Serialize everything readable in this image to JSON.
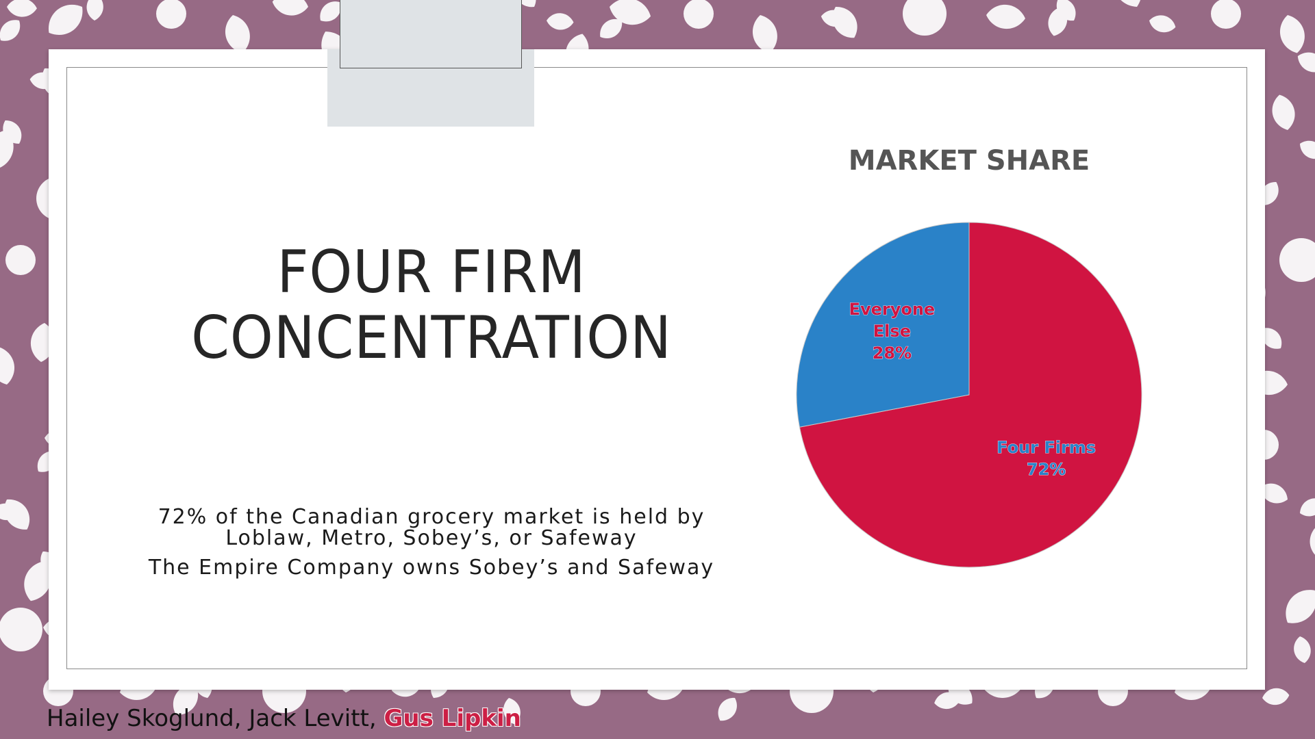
{
  "slide": {
    "title_line1": "FOUR FIRM",
    "title_line2": "CONCENTRATION",
    "body_line1": "72% of the Canadian grocery market is held by Loblaw, Metro, Sobey’s, or Safeway",
    "body_line2": "The Empire Company owns Sobey’s and Safeway",
    "authors_plain": "Hailey Skoglund, Jack Levitt, ",
    "authors_highlight": "Gus Lipkin"
  },
  "colors": {
    "background": "#976a85",
    "four_firms": "#d01441",
    "everyone_else": "#2a82c8",
    "chart_title": "#555555"
  },
  "chart_data": {
    "type": "pie",
    "title": "MARKET SHARE",
    "slices": [
      {
        "label": "Four Firms",
        "value": 72,
        "label_text": "72%",
        "color": "#d01441"
      },
      {
        "label": "Everyone Else",
        "value": 28,
        "label_text": "28%",
        "color": "#2a82c8"
      }
    ],
    "start": "12 o'clock, clockwise",
    "legend": "none"
  }
}
